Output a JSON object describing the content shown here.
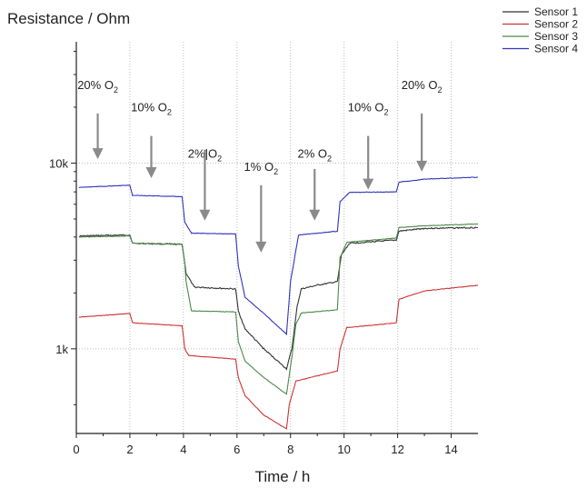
{
  "chart_data": {
    "type": "line",
    "title": "",
    "ylabel": "Resistance / Ohm",
    "xlabel": "Time / h",
    "x_scale": "linear",
    "y_scale": "log",
    "xlim": [
      0,
      15
    ],
    "ylim": [
      350,
      45000
    ],
    "x_ticks": [
      0,
      2,
      4,
      6,
      8,
      10,
      12,
      14
    ],
    "x_tick_labels": [
      "0",
      "2",
      "4",
      "6",
      "8",
      "10",
      "12",
      "14"
    ],
    "y_ticks": [
      1000,
      10000
    ],
    "y_tick_labels": [
      "1k",
      "10k"
    ],
    "grid": "dotted, at ticks",
    "legend_position": "top-right",
    "series": [
      {
        "name": "Sensor 1",
        "color": "#333333",
        "x": [
          0.1,
          2.0,
          2.1,
          3.95,
          4.05,
          4.1,
          4.4,
          5.95,
          6.05,
          6.3,
          7.0,
          7.85,
          8.05,
          8.25,
          8.4,
          9.0,
          9.75,
          9.9,
          10.2,
          11.95,
          12.05,
          13.0,
          15.0
        ],
        "y": [
          4050,
          4100,
          3700,
          3650,
          2900,
          2550,
          2150,
          2100,
          1600,
          1280,
          1000,
          780,
          1000,
          1700,
          2100,
          2200,
          2300,
          3200,
          3700,
          3850,
          4300,
          4450,
          4500
        ]
      },
      {
        "name": "Sensor 2",
        "color": "#cc3333",
        "x": [
          0.1,
          2.0,
          2.1,
          3.95,
          4.05,
          4.2,
          5.95,
          6.05,
          6.3,
          7.0,
          7.85,
          7.95,
          8.2,
          9.75,
          9.85,
          10.1,
          11.95,
          12.05,
          13.0,
          15.0
        ],
        "y": [
          1480,
          1550,
          1380,
          1330,
          1000,
          920,
          880,
          700,
          560,
          440,
          370,
          500,
          670,
          760,
          1000,
          1300,
          1380,
          1850,
          2050,
          2200
        ]
      },
      {
        "name": "Sensor 3",
        "color": "#4a8a4a",
        "x": [
          0.1,
          2.0,
          2.1,
          3.95,
          4.05,
          4.1,
          4.3,
          5.95,
          6.05,
          6.3,
          7.0,
          7.85,
          8.05,
          8.2,
          8.4,
          9.75,
          9.85,
          10.1,
          11.95,
          12.05,
          13.0,
          15.0
        ],
        "y": [
          4000,
          4050,
          3700,
          3650,
          2900,
          2300,
          1600,
          1580,
          1100,
          860,
          700,
          570,
          900,
          1350,
          1560,
          1620,
          3100,
          3750,
          3950,
          4500,
          4600,
          4700
        ]
      },
      {
        "name": "Sensor 4",
        "color": "#3333bb",
        "x": [
          0.1,
          2.0,
          2.1,
          3.95,
          4.05,
          4.3,
          5.95,
          6.05,
          6.3,
          7.0,
          7.85,
          8.0,
          8.3,
          9.75,
          9.85,
          10.2,
          11.95,
          12.05,
          13.0,
          15.0
        ],
        "y": [
          7400,
          7600,
          6700,
          6600,
          4800,
          4200,
          4150,
          2800,
          1900,
          1550,
          1200,
          2300,
          4100,
          4300,
          6200,
          6950,
          7000,
          7900,
          8200,
          8400
        ]
      }
    ],
    "annotations": [
      {
        "text_main": "20% O",
        "text_sub": "2",
        "x": 0.8,
        "label_y": 25000,
        "arrow_from": 18500,
        "arrow_to": 10500
      },
      {
        "text_main": "10% O",
        "text_sub": "2",
        "x": 2.8,
        "label_y": 19000,
        "arrow_from": 14000,
        "arrow_to": 8300
      },
      {
        "text_main": "2%|O",
        "text_sub": "2",
        "x": 4.8,
        "label_y": 10700,
        "arrow_from": 11800,
        "arrow_to": 4900
      },
      {
        "text_main": "1% O",
        "text_sub": "2",
        "x": 6.9,
        "label_y": 9100,
        "arrow_from": 7600,
        "arrow_to": 3300
      },
      {
        "text_main": "2% O",
        "text_sub": "2",
        "x": 8.9,
        "label_y": 10700,
        "arrow_from": 9300,
        "arrow_to": 4900
      },
      {
        "text_main": "10% O",
        "text_sub": "2",
        "x": 10.9,
        "label_y": 19000,
        "arrow_from": 14000,
        "arrow_to": 7200
      },
      {
        "text_main": "20% O",
        "text_sub": "2",
        "x": 12.9,
        "label_y": 25000,
        "arrow_from": 18500,
        "arrow_to": 9000
      }
    ]
  }
}
